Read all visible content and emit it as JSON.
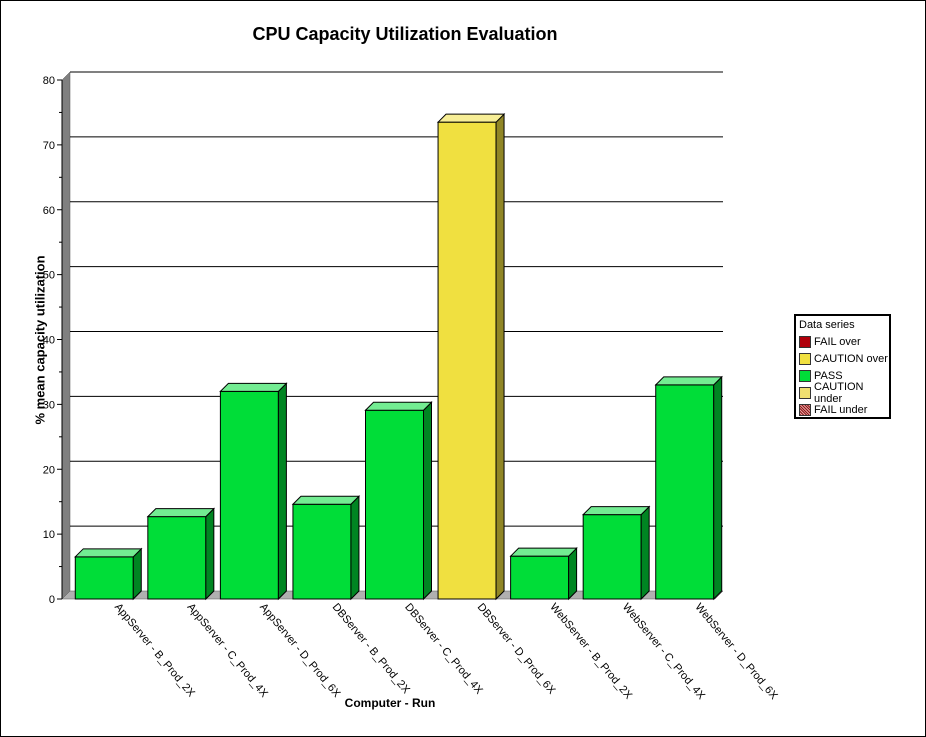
{
  "chart_data": {
    "type": "bar",
    "title": "CPU Capacity Utilization Evaluation",
    "xlabel": "Computer - Run",
    "ylabel": "% mean capacity utilization",
    "ylim": [
      0,
      80
    ],
    "yticks": [
      "0",
      "10",
      "20",
      "30",
      "40",
      "50",
      "60",
      "70",
      "80"
    ],
    "grid": true,
    "legend_position": "right",
    "categories": [
      "AppServer - B_Prod_2X",
      "AppServer - C_Prod_4X",
      "AppServer - D_Prod_6X",
      "DBServer - B_Prod_2X",
      "DBServer - C_Prod_4X",
      "DBServer - D_Prod_6X",
      "WebServer - B_Prod_2X",
      "WebServer - C_Prod_4X",
      "WebServer - D_Prod_6X"
    ],
    "values": [
      6.5,
      12.7,
      32.0,
      14.6,
      29.1,
      73.5,
      6.6,
      13.0,
      33.0
    ],
    "bar_series": [
      "PASS",
      "PASS",
      "PASS",
      "PASS",
      "PASS",
      "CAUTION over",
      "PASS",
      "PASS",
      "PASS"
    ],
    "legend": {
      "title": "Data series",
      "items": [
        {
          "name": "FAIL over",
          "color": "#b0000b"
        },
        {
          "name": "CAUTION over",
          "color": "#f0e040"
        },
        {
          "name": "PASS",
          "color": "#00dd38"
        },
        {
          "name": "CAUTION under",
          "color": "#f0e070"
        },
        {
          "name": "FAIL under",
          "color": "#b02020",
          "pattern": "hatch"
        }
      ]
    }
  }
}
